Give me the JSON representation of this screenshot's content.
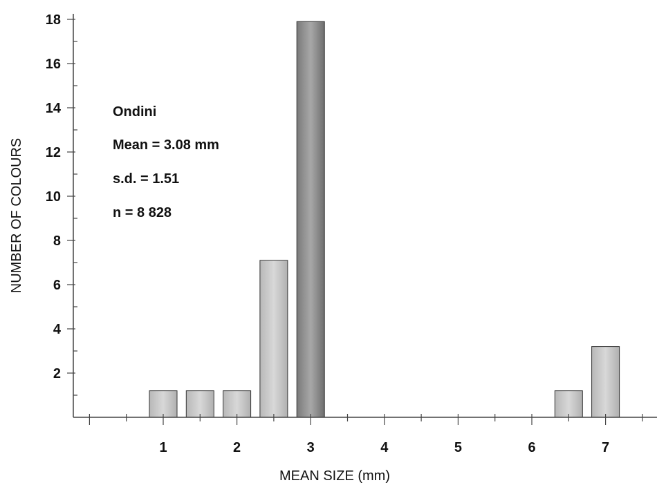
{
  "chart_data": {
    "type": "bar",
    "title": "",
    "xlabel": "MEAN SIZE (mm)",
    "ylabel": "NUMBER OF COLOURS",
    "x": [
      1,
      1.5,
      2,
      2.5,
      3,
      6.5,
      7
    ],
    "values": [
      1.2,
      1.2,
      1.2,
      7.1,
      17.9,
      1.2,
      3.2
    ],
    "xlim": [
      0,
      8
    ],
    "ylim": [
      0,
      18
    ],
    "xticks": [
      1,
      2,
      3,
      4,
      5,
      6,
      7
    ],
    "yticks": [
      2,
      4,
      6,
      8,
      10,
      12,
      14,
      16,
      18
    ],
    "grid": false,
    "colors": {
      "bar_light": "#c9c9c9",
      "bar_dark": "#8a8a8a"
    },
    "annotations": [
      "Ondini",
      "Mean = 3.08 mm",
      "s.d. = 1.51",
      "n = 8 828"
    ]
  }
}
